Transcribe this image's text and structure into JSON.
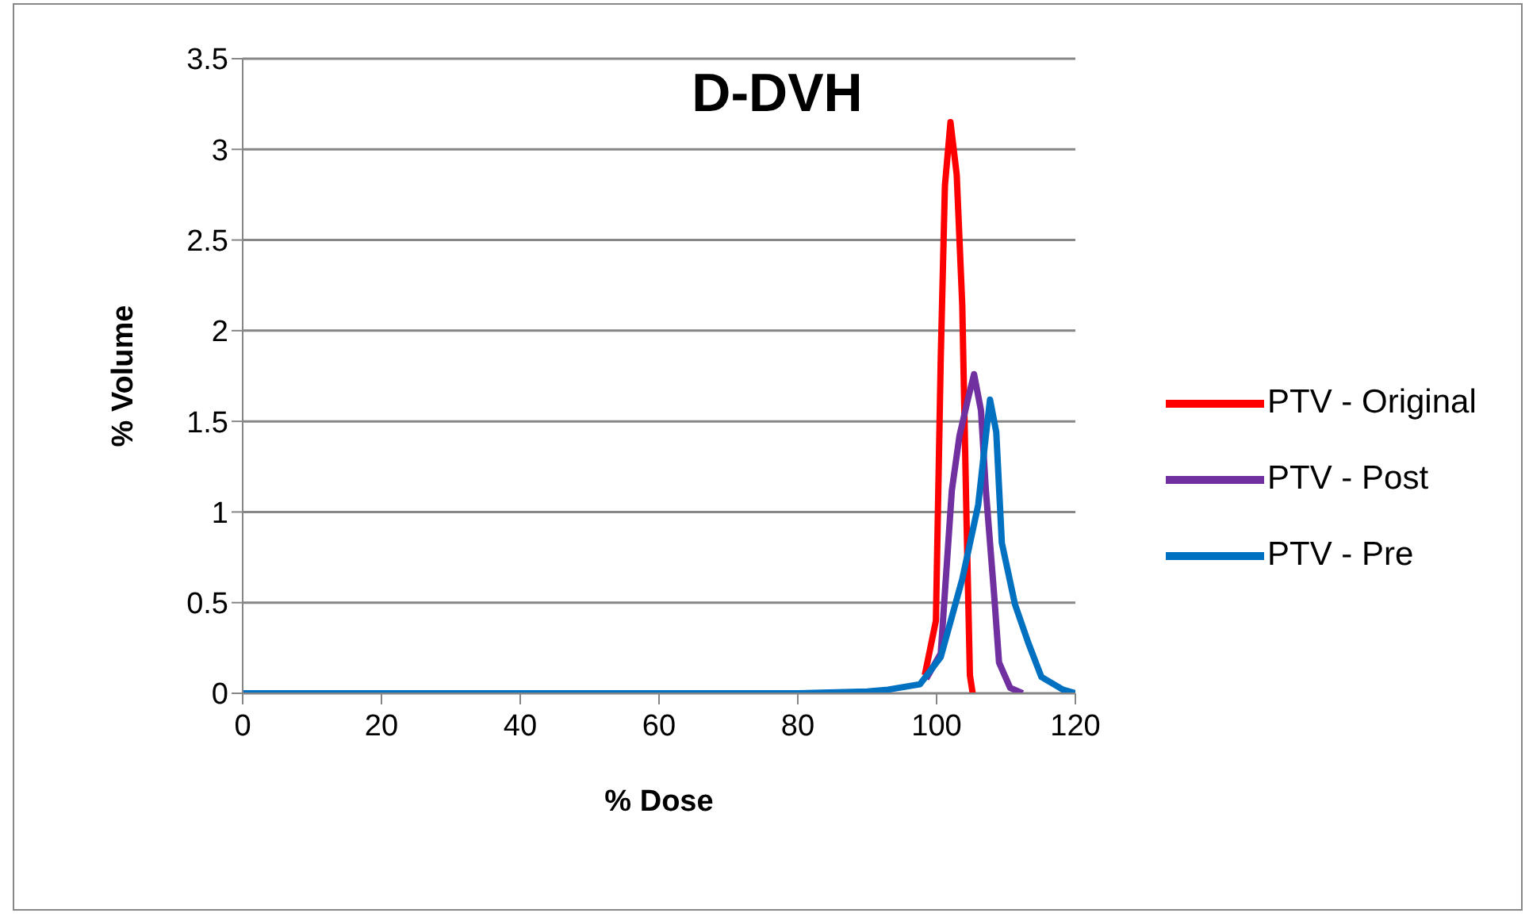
{
  "chart_data": {
    "type": "line",
    "title": "D-DVH",
    "xlabel": "% Dose",
    "ylabel": "% Volume",
    "xlim": [
      0,
      120
    ],
    "xticks": [
      0,
      20,
      40,
      60,
      80,
      100,
      120
    ],
    "ylim": [
      0,
      3.5
    ],
    "yticks": [
      0,
      0.5,
      1,
      1.5,
      2,
      2.5,
      3,
      3.5
    ],
    "grid": "y",
    "legend": "right",
    "marker": "none",
    "line_style": "solid",
    "series": [
      {
        "name": "PTV - Original",
        "color": "#ff0000",
        "x": [
          98.3,
          99.9,
          100.6,
          101.2,
          102.0,
          102.9,
          103.7,
          104.3,
          104.8,
          105.2
        ],
        "values": [
          0.1,
          0.4,
          1.85,
          2.8,
          3.15,
          2.86,
          2.14,
          0.98,
          0.1,
          0
        ]
      },
      {
        "name": "PTV - Post",
        "color": "#7030a0",
        "x": [
          98.5,
          100.6,
          102.2,
          103.3,
          104.5,
          105.4,
          106.4,
          107.1,
          108.3,
          109.0,
          110.6,
          112.4
        ],
        "values": [
          0.08,
          0.22,
          1.12,
          1.42,
          1.62,
          1.76,
          1.56,
          1.12,
          0.54,
          0.17,
          0.03,
          0
        ]
      },
      {
        "name": "PTV - Pre",
        "color": "#0070c0",
        "x": [
          0,
          80,
          90,
          93,
          97.6,
          100.6,
          103.7,
          106,
          107.1,
          107.7,
          108.6,
          109.4,
          111.3,
          113.2,
          115.1,
          118.2,
          120
        ],
        "values": [
          0,
          0,
          0.01,
          0.02,
          0.05,
          0.2,
          0.63,
          1.04,
          1.42,
          1.62,
          1.44,
          0.83,
          0.49,
          0.28,
          0.09,
          0.02,
          0
        ]
      }
    ]
  }
}
